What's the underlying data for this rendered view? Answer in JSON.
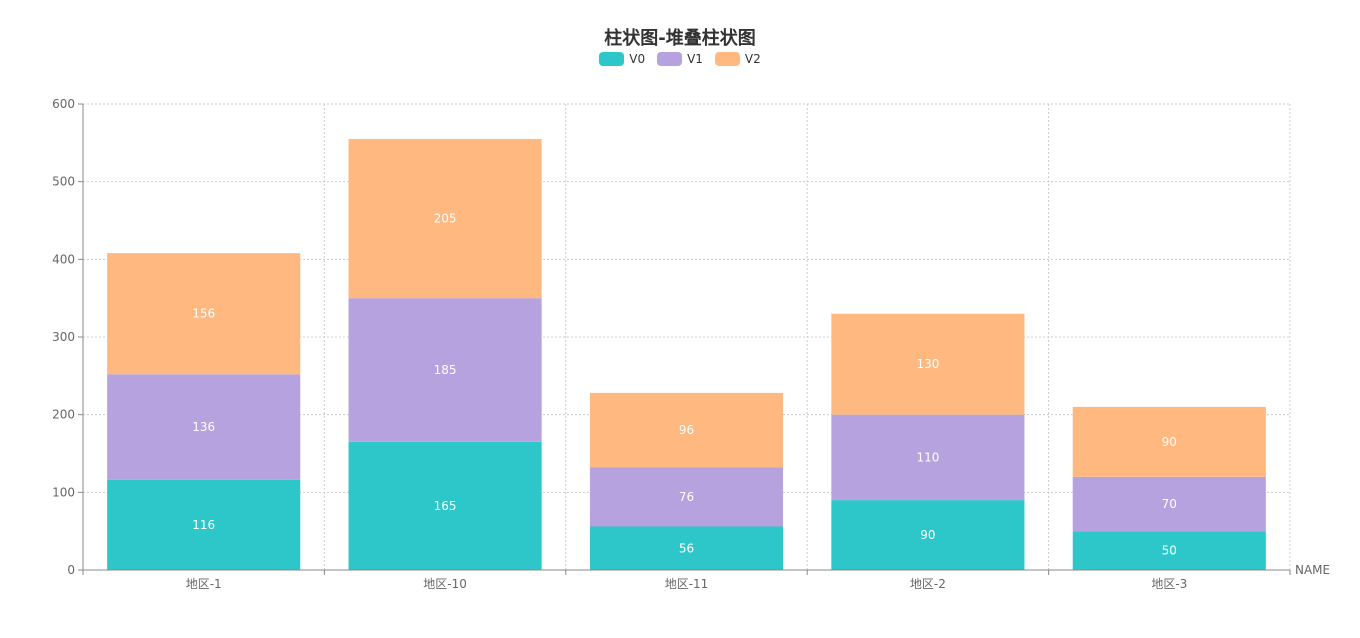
{
  "chart_data": {
    "type": "bar",
    "stacked": true,
    "title": "柱状图-堆叠柱状图",
    "xlabel": "NAME",
    "ylabel": "",
    "categories": [
      "地区-1",
      "地区-10",
      "地区-11",
      "地区-2",
      "地区-3"
    ],
    "ylim": [
      0,
      600
    ],
    "yticks": [
      0,
      100,
      200,
      300,
      400,
      500,
      600
    ],
    "grid": true,
    "legend_position": "top-center",
    "series": [
      {
        "name": "V0",
        "color": "#2ec7c9",
        "values": [
          116,
          165,
          56,
          90,
          50
        ]
      },
      {
        "name": "V1",
        "color": "#b6a2de",
        "values": [
          136,
          185,
          76,
          110,
          70
        ]
      },
      {
        "name": "V2",
        "color": "#ffb980",
        "values": [
          156,
          205,
          96,
          130,
          90
        ]
      }
    ]
  }
}
